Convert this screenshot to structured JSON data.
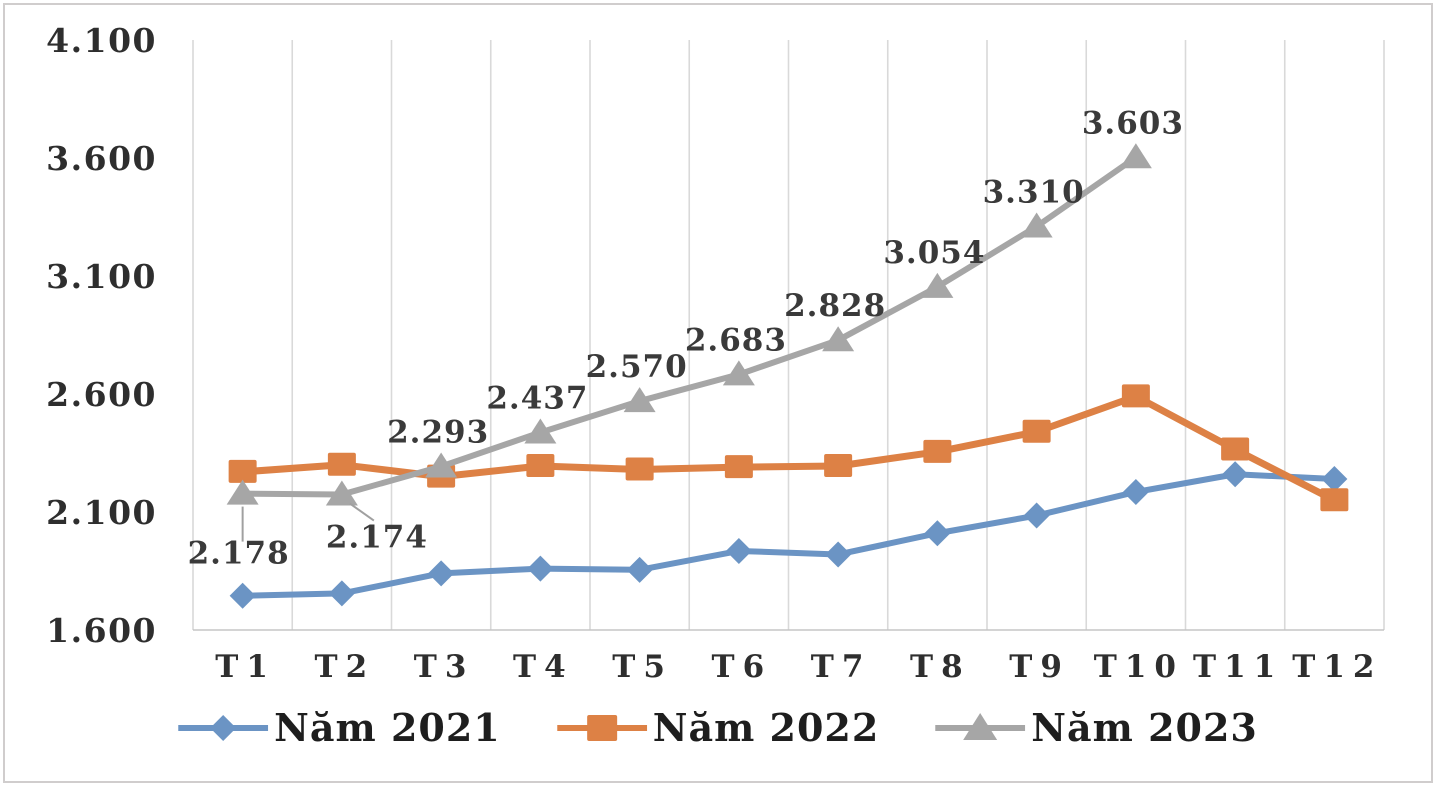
{
  "chart_data": {
    "type": "line",
    "title": "",
    "categories": [
      "T1",
      "T2",
      "T3",
      "T4",
      "T5",
      "T6",
      "T7",
      "T8",
      "T9",
      "T10",
      "T11",
      "T12"
    ],
    "x_axis": {
      "label": ""
    },
    "y_axis": {
      "label": "",
      "min": 1600,
      "max": 4100,
      "step": 500,
      "tick_labels": [
        "1.600",
        "2.100",
        "2.600",
        "3.100",
        "3.600",
        "4.100"
      ]
    },
    "gridlines": "vertical-only",
    "legend_position": "bottom",
    "series": [
      {
        "name": "Năm 2021",
        "marker": "diamond",
        "color": "#6B94C4",
        "values": [
          1745,
          1755,
          1840,
          1860,
          1855,
          1935,
          1920,
          2010,
          2085,
          2185,
          2260,
          2240
        ]
      },
      {
        "name": "Năm 2022",
        "marker": "square",
        "color": "#DD8145",
        "values": [
          2270,
          2300,
          2250,
          2295,
          2280,
          2290,
          2295,
          2355,
          2440,
          2590,
          2365,
          2150
        ]
      },
      {
        "name": "Năm 2023",
        "marker": "triangle",
        "color": "#A6A6A6",
        "values": [
          2178,
          2174,
          2293,
          2437,
          2570,
          2683,
          2828,
          3054,
          3310,
          3603,
          null,
          null
        ],
        "data_labels": [
          "2.178",
          "2.174",
          "2.293",
          "2.437",
          "2.570",
          "2.683",
          "2.828",
          "3.054",
          "3.310",
          "3.603"
        ]
      }
    ],
    "colors": {
      "grid": "#D9D9D9",
      "axis_line": "#C6C6C6",
      "tick_text": "#2e2e2e",
      "data_label_text": "#3a3a3a",
      "leader_line": "#A0A0A0"
    }
  },
  "legend": {
    "items": [
      {
        "label": "Năm 2021"
      },
      {
        "label": "Năm 2022"
      },
      {
        "label": "Năm 2023"
      }
    ]
  }
}
